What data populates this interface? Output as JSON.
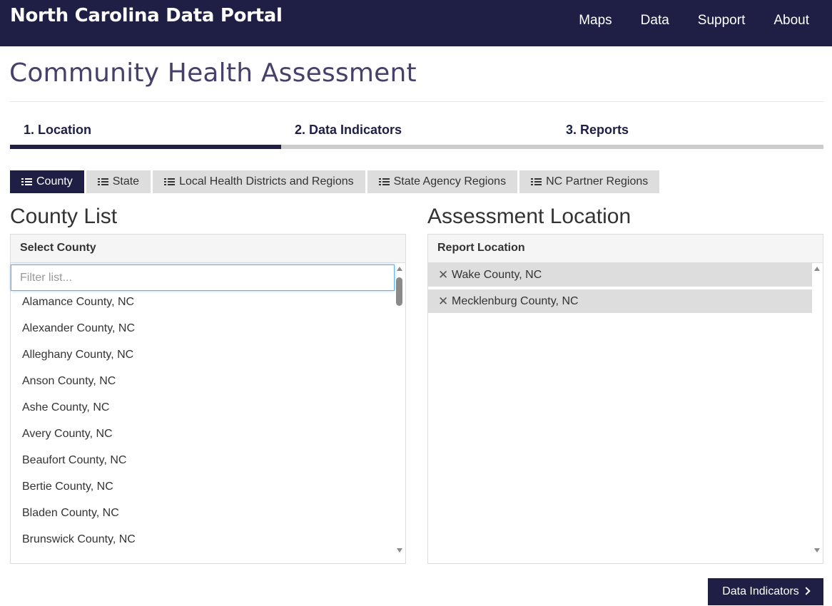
{
  "header": {
    "brand": "North Carolina Data Portal",
    "nav": [
      "Maps",
      "Data",
      "Support",
      "About"
    ]
  },
  "page": {
    "title": "Community Health Assessment"
  },
  "steps": [
    {
      "label": "1. Location",
      "active": true
    },
    {
      "label": "2. Data Indicators",
      "active": false
    },
    {
      "label": "3. Reports",
      "active": false
    }
  ],
  "geo_tabs": [
    {
      "label": "County",
      "icon": "list-icon",
      "active": true
    },
    {
      "label": "State",
      "icon": "list-icon",
      "active": false
    },
    {
      "label": "Local Health Districts and Regions",
      "icon": "list-icon",
      "active": false
    },
    {
      "label": "State Agency Regions",
      "icon": "list-icon",
      "active": false
    },
    {
      "label": "NC Partner Regions",
      "icon": "list-icon",
      "active": false
    }
  ],
  "county_list": {
    "heading": "County List",
    "panel_title": "Select County",
    "filter_placeholder": "Filter list...",
    "items": [
      "Alamance County, NC",
      "Alexander County, NC",
      "Alleghany County, NC",
      "Anson County, NC",
      "Ashe County, NC",
      "Avery County, NC",
      "Beaufort County, NC",
      "Bertie County, NC",
      "Bladen County, NC",
      "Brunswick County, NC"
    ]
  },
  "assessment": {
    "heading": "Assessment Location",
    "panel_title": "Report Location",
    "remove_icon": "close-icon",
    "items": [
      "Wake County, NC",
      "Mecklenburg County, NC"
    ]
  },
  "next_button": {
    "label": "Data Indicators",
    "icon": "chevron-right-icon"
  },
  "colors": {
    "navy": "#1f1f45",
    "title_purple": "#47406b",
    "tab_gray": "#dddddd"
  }
}
